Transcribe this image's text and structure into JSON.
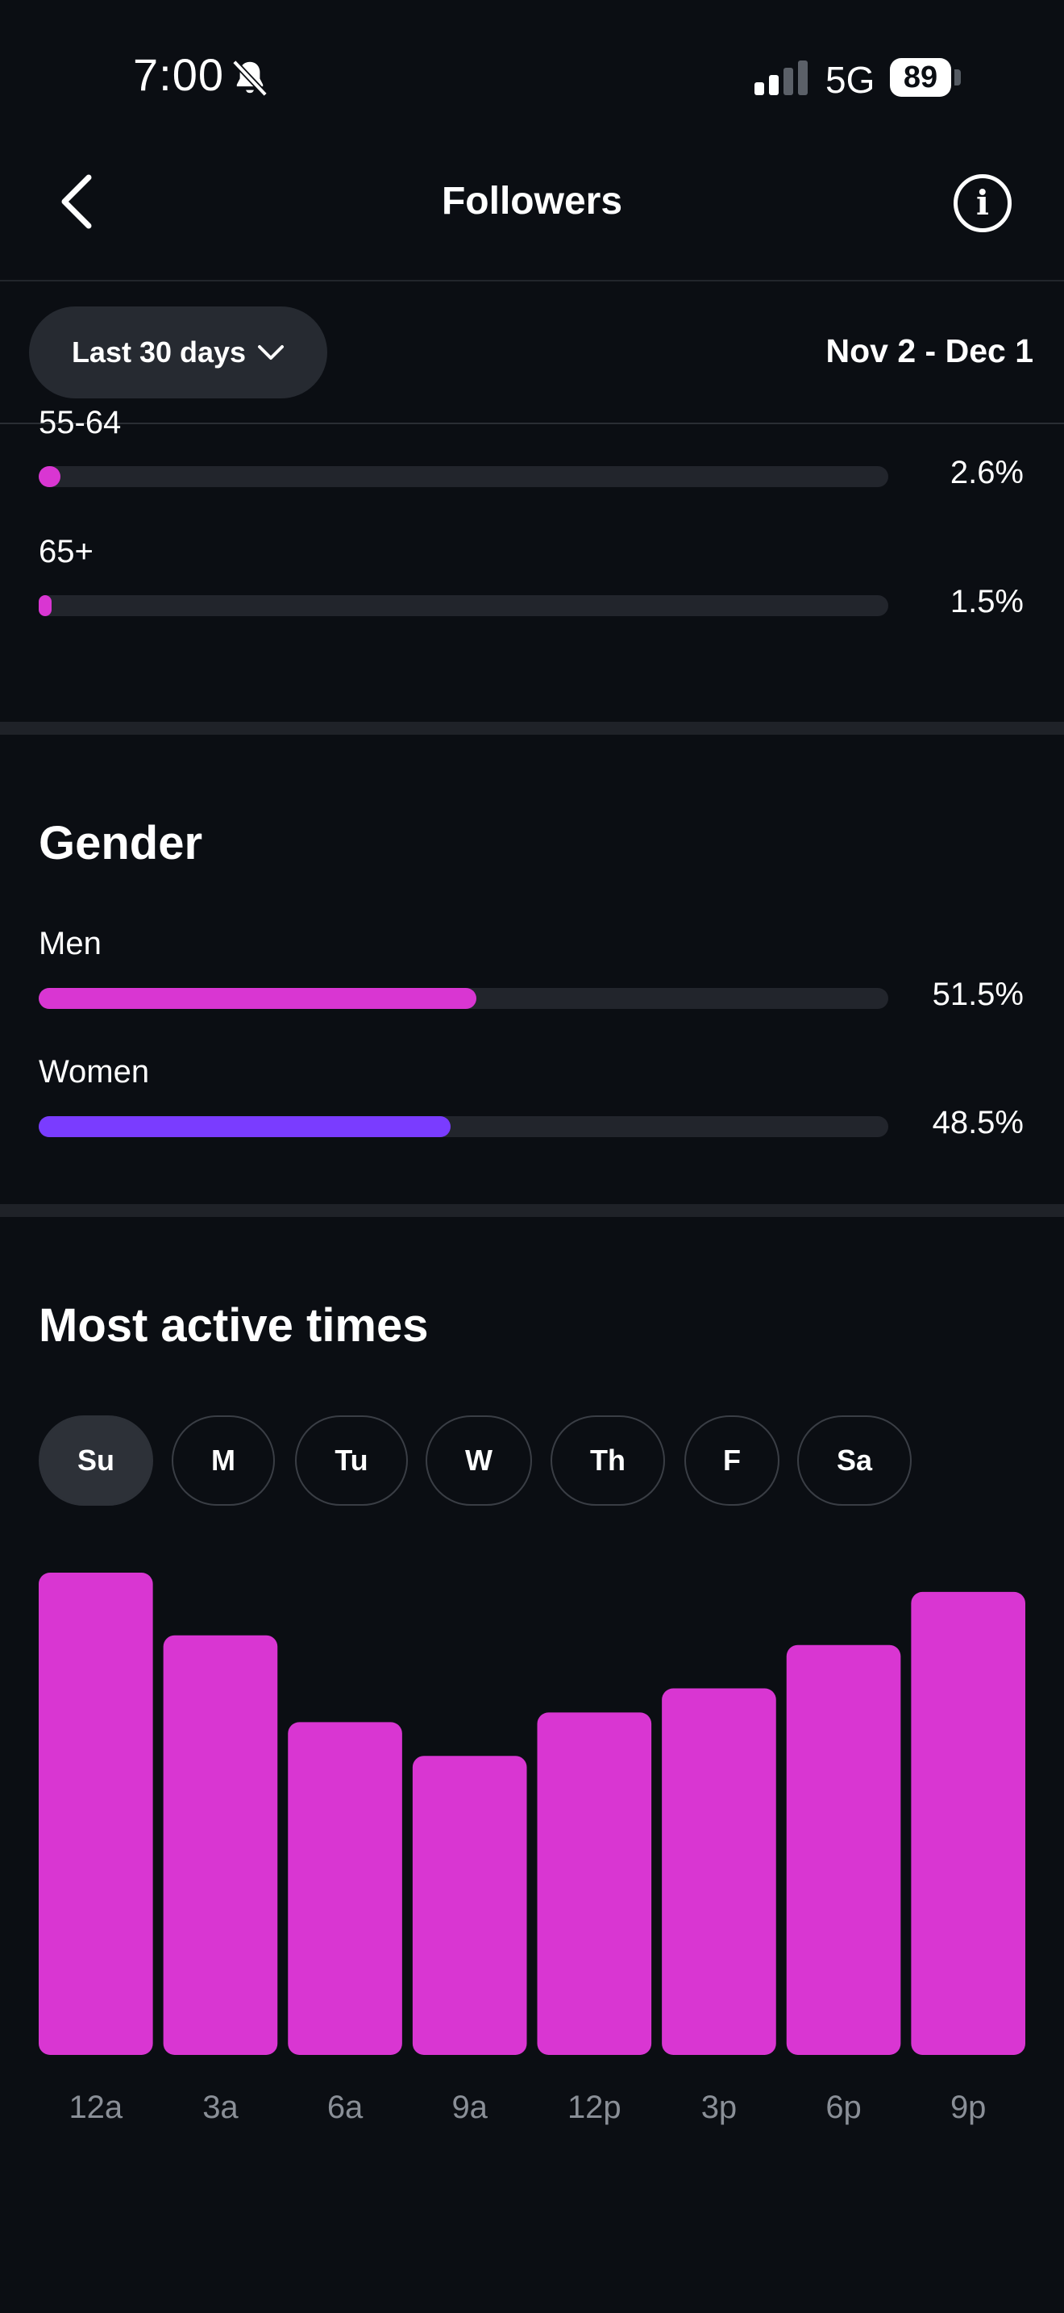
{
  "status_bar": {
    "time": "7:00",
    "network": "5G",
    "battery": "89"
  },
  "header": {
    "title": "Followers"
  },
  "filter": {
    "range_label": "Last 30 days",
    "date_range": "Nov 2 - Dec 1"
  },
  "age": {
    "items": [
      {
        "label": "55-64",
        "value": 2.6,
        "display": "2.6%"
      },
      {
        "label": "65+",
        "value": 1.5,
        "display": "1.5%"
      }
    ]
  },
  "gender": {
    "title": "Gender",
    "items": [
      {
        "label": "Men",
        "value": 51.5,
        "display": "51.5%",
        "color": "#d936d2"
      },
      {
        "label": "Women",
        "value": 48.5,
        "display": "48.5%",
        "color": "#7a3cff"
      }
    ]
  },
  "active_times": {
    "title": "Most active times",
    "days": [
      "Su",
      "M",
      "Tu",
      "W",
      "Th",
      "F",
      "Sa"
    ],
    "selected_day": "Su"
  },
  "colors": {
    "accent": "#d936d2",
    "secondary": "#7a3cff",
    "background": "#0b0e13"
  },
  "chart_data": {
    "type": "bar",
    "categories": [
      "12a",
      "3a",
      "6a",
      "9a",
      "12p",
      "3p",
      "6p",
      "9p"
    ],
    "values": [
      100,
      87,
      69,
      62,
      71,
      76,
      85,
      96
    ],
    "ylim": [
      0,
      100
    ],
    "grid": false,
    "color": "#d936d2"
  }
}
